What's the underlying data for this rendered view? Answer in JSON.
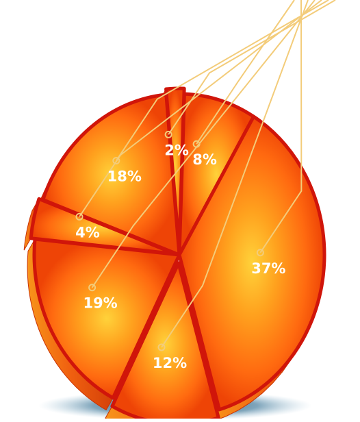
{
  "chart_data": {
    "type": "pie",
    "style": "3d-exploded",
    "categories": [
      "8%",
      "37%",
      "12%",
      "19%",
      "4%",
      "18%",
      "2%"
    ],
    "values": [
      8,
      37,
      12,
      19,
      4,
      18,
      2
    ],
    "data_labels": [
      "8%",
      "37%",
      "12%",
      "19%",
      "4%",
      "18%",
      "2%"
    ],
    "legend": "none",
    "leader_lines": true
  },
  "colors": {
    "slice_face_light": "#ffd23a",
    "slice_face_mid": "#ff7a12",
    "slice_face_dark": "#ee3d06",
    "slice_side": "#f2620a",
    "slice_side_dark": "#c93204",
    "gap_red": "#d0150a",
    "leader_line": "#f3cc7a",
    "label_text": "#ffffff",
    "shadow": "#0e3f61"
  }
}
